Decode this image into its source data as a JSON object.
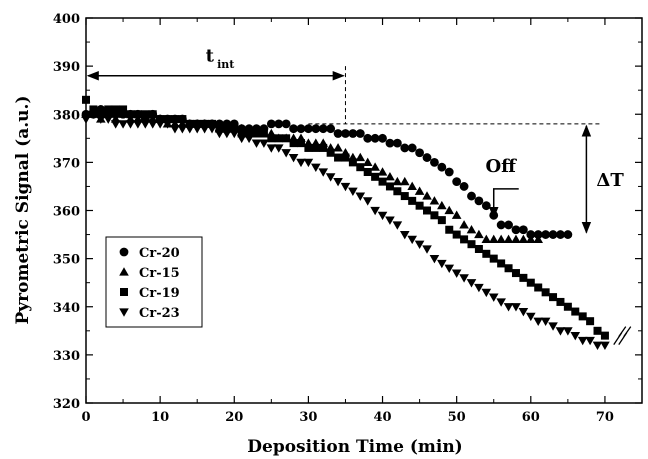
{
  "chart_data": {
    "type": "scatter",
    "xlabel": "Deposition Time (min)",
    "ylabel": "Pyrometric Signal (a.u.)",
    "xlim": [
      0,
      75
    ],
    "ylim": [
      320,
      400
    ],
    "xticks": [
      0,
      10,
      20,
      30,
      40,
      50,
      60,
      70
    ],
    "yticks": [
      320,
      330,
      340,
      350,
      360,
      370,
      380,
      390,
      400
    ],
    "grid": false,
    "legend_position": "bottom-left",
    "series": [
      {
        "name": "Cr-20",
        "marker": "circle",
        "x": [
          0,
          1,
          2,
          3,
          4,
          5,
          6,
          7,
          8,
          9,
          10,
          11,
          12,
          13,
          14,
          15,
          16,
          17,
          18,
          19,
          20,
          21,
          22,
          23,
          24,
          25,
          26,
          27,
          28,
          29,
          30,
          31,
          32,
          33,
          34,
          35,
          36,
          37,
          38,
          39,
          40,
          41,
          42,
          43,
          44,
          45,
          46,
          47,
          48,
          49,
          50,
          51,
          52,
          53,
          54,
          55,
          56,
          57,
          58,
          59,
          60,
          61,
          62,
          63,
          64,
          65
        ],
        "values": [
          380,
          380,
          381,
          380,
          380,
          380,
          380,
          380,
          379,
          380,
          379,
          379,
          379,
          379,
          378,
          378,
          378,
          378,
          378,
          378,
          378,
          377,
          377,
          377,
          377,
          378,
          378,
          378,
          377,
          377,
          377,
          377,
          377,
          377,
          376,
          376,
          376,
          376,
          375,
          375,
          375,
          374,
          374,
          373,
          373,
          372,
          371,
          370,
          369,
          368,
          366,
          365,
          363,
          362,
          361,
          359,
          357,
          357,
          356,
          356,
          355,
          355,
          355,
          355,
          355,
          355
        ]
      },
      {
        "name": "Cr-15",
        "marker": "triangle-up",
        "x": [
          0,
          1,
          2,
          3,
          4,
          5,
          6,
          7,
          8,
          9,
          10,
          11,
          12,
          13,
          14,
          15,
          16,
          17,
          18,
          19,
          20,
          21,
          22,
          23,
          24,
          25,
          26,
          27,
          28,
          29,
          30,
          31,
          32,
          33,
          34,
          35,
          36,
          37,
          38,
          39,
          40,
          41,
          42,
          43,
          44,
          45,
          46,
          47,
          48,
          49,
          50,
          51,
          52,
          53,
          54,
          55,
          56,
          57,
          58,
          59,
          60,
          61
        ],
        "values": [
          380,
          380,
          379,
          380,
          379,
          380,
          379,
          379,
          379,
          379,
          379,
          378,
          378,
          378,
          378,
          378,
          378,
          378,
          377,
          377,
          377,
          377,
          376,
          376,
          376,
          376,
          375,
          375,
          375,
          375,
          374,
          374,
          374,
          373,
          373,
          372,
          371,
          371,
          370,
          369,
          368,
          367,
          366,
          366,
          365,
          364,
          363,
          362,
          361,
          360,
          359,
          357,
          356,
          355,
          354,
          354,
          354,
          354,
          354,
          354,
          354,
          354
        ]
      },
      {
        "name": "Cr-19",
        "marker": "square",
        "x": [
          0,
          1,
          2,
          3,
          4,
          5,
          6,
          7,
          8,
          9,
          10,
          11,
          12,
          13,
          14,
          15,
          16,
          17,
          18,
          19,
          20,
          21,
          22,
          23,
          24,
          25,
          26,
          27,
          28,
          29,
          30,
          31,
          32,
          33,
          34,
          35,
          36,
          37,
          38,
          39,
          40,
          41,
          42,
          43,
          44,
          45,
          46,
          47,
          48,
          49,
          50,
          51,
          52,
          53,
          54,
          55,
          56,
          57,
          58,
          59,
          60,
          61,
          62,
          63,
          64,
          65,
          66,
          67,
          68,
          69,
          70
        ],
        "values": [
          383,
          381,
          380,
          381,
          381,
          381,
          380,
          380,
          380,
          380,
          379,
          379,
          379,
          379,
          378,
          378,
          378,
          378,
          377,
          377,
          377,
          376,
          376,
          376,
          376,
          375,
          375,
          375,
          374,
          374,
          373,
          373,
          373,
          372,
          371,
          371,
          370,
          369,
          368,
          367,
          366,
          365,
          364,
          363,
          362,
          361,
          360,
          359,
          358,
          356,
          355,
          354,
          353,
          352,
          351,
          350,
          349,
          348,
          347,
          346,
          345,
          344,
          343,
          342,
          341,
          340,
          339,
          338,
          337,
          335,
          334
        ]
      },
      {
        "name": "Cr-23",
        "marker": "triangle-down",
        "x": [
          0,
          1,
          2,
          3,
          4,
          5,
          6,
          7,
          8,
          9,
          10,
          11,
          12,
          13,
          14,
          15,
          16,
          17,
          18,
          19,
          20,
          21,
          22,
          23,
          24,
          25,
          26,
          27,
          28,
          29,
          30,
          31,
          32,
          33,
          34,
          35,
          36,
          37,
          38,
          39,
          40,
          41,
          42,
          43,
          44,
          45,
          46,
          47,
          48,
          49,
          50,
          51,
          52,
          53,
          54,
          55,
          56,
          57,
          58,
          59,
          60,
          61,
          62,
          63,
          64,
          65,
          66,
          67,
          68,
          69,
          70
        ],
        "values": [
          379,
          380,
          379,
          379,
          378,
          378,
          378,
          378,
          378,
          378,
          378,
          378,
          377,
          377,
          377,
          377,
          377,
          377,
          376,
          376,
          376,
          375,
          375,
          374,
          374,
          373,
          373,
          372,
          371,
          370,
          370,
          369,
          368,
          367,
          366,
          365,
          364,
          363,
          362,
          360,
          359,
          358,
          357,
          355,
          354,
          353,
          352,
          350,
          349,
          348,
          347,
          346,
          345,
          344,
          343,
          342,
          341,
          340,
          340,
          339,
          338,
          337,
          337,
          336,
          335,
          335,
          334,
          333,
          333,
          332,
          332
        ]
      }
    ],
    "annotations": {
      "t_int_main": "t",
      "t_int_sub": "int",
      "t_int_range": [
        0,
        35
      ],
      "off_label": "Off",
      "off_x": 55,
      "delta_label": "ΔT",
      "delta_range": [
        355,
        378
      ],
      "break_marker_x": 72,
      "break_marker_y": 334
    }
  }
}
